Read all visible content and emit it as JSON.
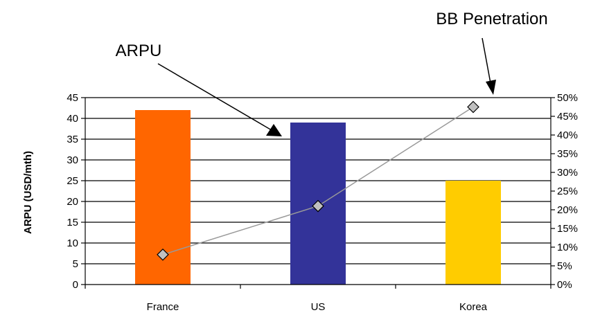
{
  "chart_data": {
    "type": "bar",
    "categories": [
      "France",
      "US",
      "Korea"
    ],
    "series": [
      {
        "name": "ARPU",
        "type": "bar",
        "axis": "left",
        "values": [
          42,
          39,
          25
        ]
      },
      {
        "name": "BB Penetration",
        "type": "line",
        "axis": "right",
        "values": [
          0.08,
          0.21,
          0.475
        ]
      }
    ],
    "bar_colors": [
      "#FF6600",
      "#333399",
      "#FFCC00"
    ],
    "line_color": "#999999",
    "marker_color": "#C0C0C0",
    "ylabel": "ARPU (USD/mth)",
    "ylim": [
      0,
      45
    ],
    "yticks": [
      0,
      5,
      10,
      15,
      20,
      25,
      30,
      35,
      40,
      45
    ],
    "y2lim": [
      0,
      0.5
    ],
    "y2ticks": [
      "0%",
      "5%",
      "10%",
      "15%",
      "20%",
      "25%",
      "30%",
      "35%",
      "40%",
      "45%",
      "50%"
    ],
    "grid": true,
    "annotations": [
      {
        "text": "ARPU",
        "target_series": "ARPU"
      },
      {
        "text": "BB Penetration",
        "target_series": "BB Penetration"
      }
    ]
  }
}
